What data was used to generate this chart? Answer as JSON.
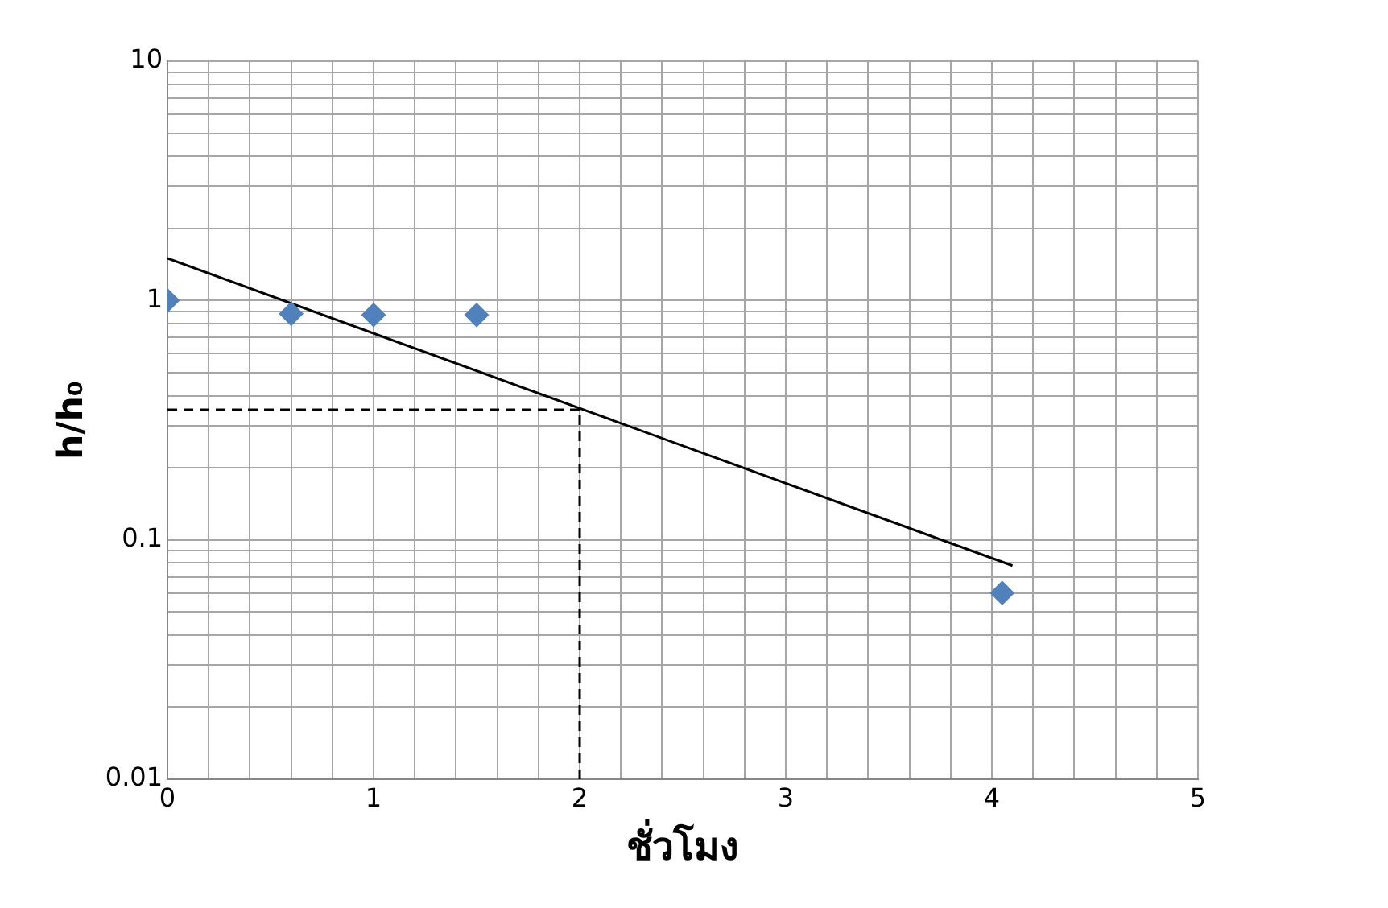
{
  "chart_data": {
    "type": "scatter",
    "xlabel": "ชั่วโมง",
    "ylabel": "h/h₀",
    "log": "y",
    "grid": true,
    "legend": false,
    "xlim": [
      0,
      5
    ],
    "xticks": [
      0,
      {
        "value": 0.2,
        "label": null
      },
      {
        "value": 0.4,
        "label": null
      },
      {
        "value": 0.6,
        "label": null
      },
      {
        "value": 0.8,
        "label": null
      },
      1,
      {
        "value": 1.2,
        "label": null
      },
      {
        "value": 1.4,
        "label": null
      },
      {
        "value": 1.6,
        "label": null
      },
      {
        "value": 1.8,
        "label": null
      },
      2,
      {
        "value": 2.2,
        "label": null
      },
      {
        "value": 2.4,
        "label": null
      },
      {
        "value": 2.6,
        "label": null
      },
      {
        "value": 2.8,
        "label": null
      },
      3,
      {
        "value": 3.2,
        "label": null
      },
      {
        "value": 3.4,
        "label": null
      },
      {
        "value": 3.6,
        "label": null
      },
      {
        "value": 3.8,
        "label": null
      },
      4,
      {
        "value": 4.2,
        "label": null
      },
      {
        "value": 4.4,
        "label": null
      },
      {
        "value": 4.6,
        "label": null
      },
      {
        "value": 4.8,
        "label": null
      },
      5
    ],
    "ylim": [
      0.01,
      10
    ],
    "yticks": [
      0.01,
      {
        "value": 0.02,
        "label": null
      },
      {
        "value": 0.03,
        "label": null
      },
      {
        "value": 0.04,
        "label": null
      },
      {
        "value": 0.05,
        "label": null
      },
      {
        "value": 0.06,
        "label": null
      },
      {
        "value": 0.07,
        "label": null
      },
      {
        "value": 0.08,
        "label": null
      },
      {
        "value": 0.09,
        "label": null
      },
      0.1,
      {
        "value": 0.2,
        "label": null
      },
      {
        "value": 0.3,
        "label": null
      },
      {
        "value": 0.4,
        "label": null
      },
      {
        "value": 0.5,
        "label": null
      },
      {
        "value": 0.6,
        "label": null
      },
      {
        "value": 0.7,
        "label": null
      },
      {
        "value": 0.8,
        "label": null
      },
      {
        "value": 0.9,
        "label": null
      },
      1,
      {
        "value": 2,
        "label": null
      },
      {
        "value": 3,
        "label": null
      },
      {
        "value": 4,
        "label": null
      },
      {
        "value": 5,
        "label": null
      },
      {
        "value": 6,
        "label": null
      },
      {
        "value": 7,
        "label": null
      },
      {
        "value": 8,
        "label": null
      },
      {
        "value": 9,
        "label": null
      },
      10
    ],
    "series": [
      {
        "type": "scatter",
        "marker": "diamond",
        "color": "#4f81bd",
        "x": [
          0,
          0.6,
          1,
          1.5,
          4.05
        ],
        "values": [
          1,
          0.88,
          0.87,
          0.87,
          0.06
        ]
      },
      {
        "type": "line",
        "marker": "none",
        "line_style": "solid",
        "color": "#000000",
        "x": [
          0,
          4.1
        ],
        "values": [
          1.5,
          0.078
        ]
      },
      {
        "type": "line",
        "marker": "none",
        "line_style": "dashed",
        "color": "#000000",
        "x": [
          0,
          2
        ],
        "values": [
          0.35,
          0.35
        ]
      },
      {
        "type": "line",
        "marker": "none",
        "line_style": "dashed",
        "color": "#000000",
        "x": [
          2,
          2
        ],
        "values": [
          0.01,
          0.35
        ]
      }
    ]
  }
}
